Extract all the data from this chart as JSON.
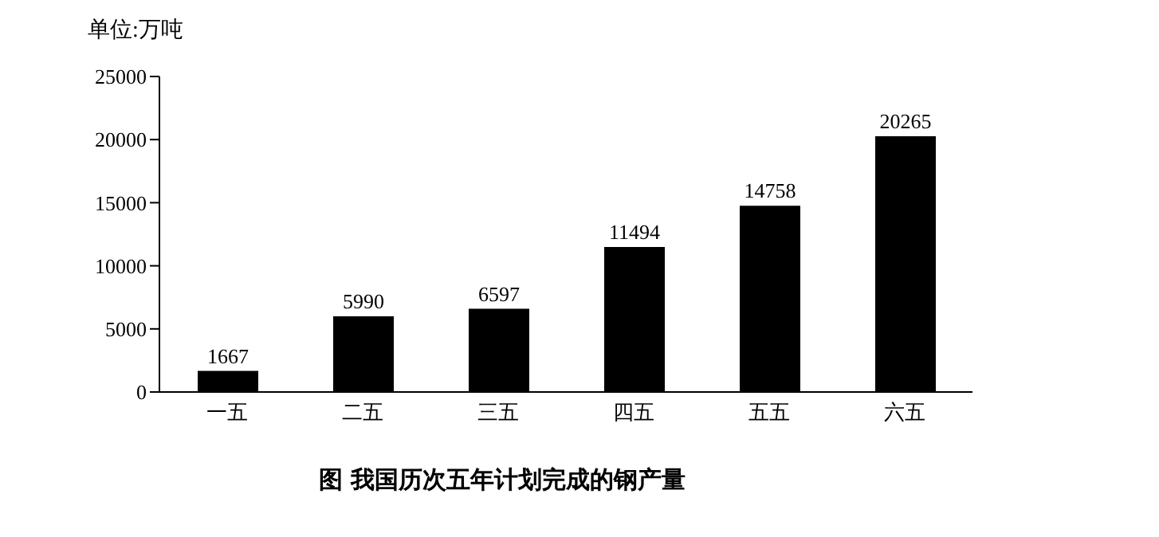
{
  "chart_data": {
    "type": "bar",
    "title": "图  我国历次五年计划完成的钢产量",
    "ylabel": "单位:万吨",
    "categories": [
      "一五",
      "二五",
      "三五",
      "四五",
      "五五",
      "六五"
    ],
    "values": [
      1667,
      5990,
      6597,
      11494,
      14758,
      20265
    ],
    "color": "#000000",
    "ylim": [
      0,
      25000
    ],
    "yticks": [
      0,
      5000,
      10000,
      15000,
      20000,
      25000
    ],
    "data_labels": true,
    "grid": false
  }
}
